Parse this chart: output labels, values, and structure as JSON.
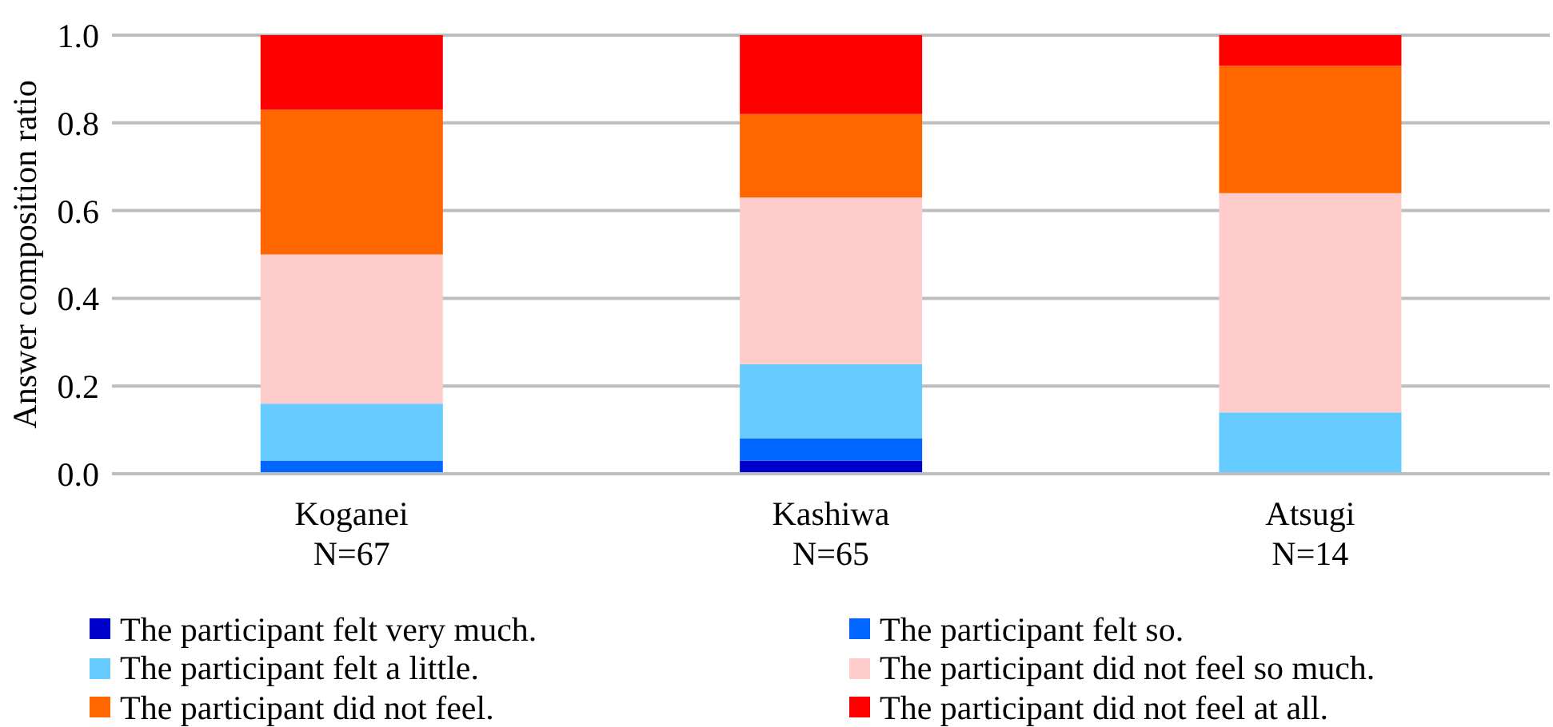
{
  "chart_data": {
    "type": "bar",
    "stacked": true,
    "ylabel": "Answer composition ratio",
    "categories": [
      "Koganei\nN=67",
      "Kashiwa\nN=65",
      "Atsugi\nN=14"
    ],
    "series": [
      {
        "name": "The participant felt very much.",
        "color": "#0000cc",
        "values": [
          0,
          0.03,
          0
        ]
      },
      {
        "name": "The participant felt so.",
        "color": "#0066ff",
        "values": [
          0.03,
          0.05,
          0
        ]
      },
      {
        "name": "The participant felt a little.",
        "color": "#66ccff",
        "values": [
          0.13,
          0.17,
          0.14
        ]
      },
      {
        "name": "The participant did not feel so much.",
        "color": "#ffcccc",
        "values": [
          0.34,
          0.38,
          0.5
        ]
      },
      {
        "name": "The participant did not feel.",
        "color": "#ff6600",
        "values": [
          0.33,
          0.19,
          0.29
        ]
      },
      {
        "name": "The participant did not feel at all.",
        "color": "#ff0000",
        "values": [
          0.17,
          0.18,
          0.07
        ]
      }
    ],
    "ylim": [
      0,
      1
    ],
    "yticks": [
      {
        "value": 0,
        "label": "0.0"
      },
      {
        "value": 0.2,
        "label": "0.2"
      },
      {
        "value": 0.4,
        "label": "0.4"
      },
      {
        "value": 0.6,
        "label": "0.6"
      },
      {
        "value": 0.8,
        "label": "0.8"
      },
      {
        "value": 1,
        "label": "1.0"
      }
    ],
    "grid": "y",
    "legend": "bottom"
  }
}
